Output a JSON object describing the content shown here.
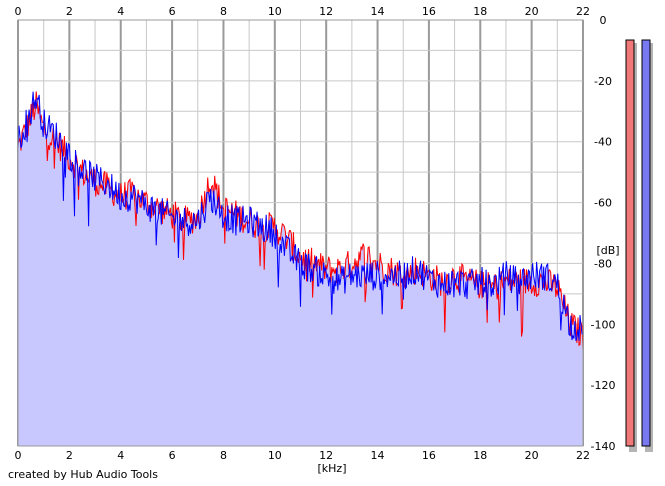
{
  "chart_data": {
    "type": "area",
    "xlabel": "[kHz]",
    "ylabel": "[dB]",
    "xlim": [
      0,
      22
    ],
    "ylim": [
      -140,
      0
    ],
    "x_ticks": [
      "0",
      "2",
      "4",
      "6",
      "8",
      "10",
      "12",
      "14",
      "16",
      "18",
      "20",
      "22"
    ],
    "y_ticks": [
      "0",
      "-20",
      "-40",
      "-60",
      "-80",
      "-100",
      "-120",
      "-140"
    ],
    "grid": true,
    "series": [
      {
        "color": "#ff0000",
        "x": [
          0,
          0.5,
          0.7,
          1,
          1.5,
          2,
          2.5,
          3,
          3.5,
          4,
          4.5,
          5,
          5.5,
          6,
          6.5,
          7,
          7.5,
          8,
          8.5,
          9,
          9.5,
          10,
          10.5,
          11,
          11.5,
          12,
          12.5,
          13,
          13.5,
          14,
          14.5,
          15,
          15.5,
          16,
          16.5,
          17,
          17.5,
          18,
          18.5,
          19,
          19.5,
          20,
          20.5,
          21,
          21.5,
          22
        ],
        "values": [
          -42,
          -32,
          -28,
          -36,
          -40,
          -45,
          -50,
          -53,
          -55,
          -58,
          -57,
          -60,
          -62,
          -64,
          -66,
          -65,
          -52,
          -62,
          -64,
          -66,
          -68,
          -68,
          -72,
          -78,
          -80,
          -82,
          -82,
          -80,
          -77,
          -80,
          -82,
          -84,
          -82,
          -84,
          -86,
          -84,
          -86,
          -87,
          -88,
          -86,
          -86,
          -86,
          -86,
          -88,
          -100,
          -104
        ]
      },
      {
        "color": "#0000ff",
        "x": [
          0,
          0.5,
          0.7,
          1,
          1.5,
          2,
          2.5,
          3,
          3.5,
          4,
          4.5,
          5,
          5.5,
          6,
          6.5,
          7,
          7.5,
          8,
          8.5,
          9,
          9.5,
          10,
          10.5,
          11,
          11.5,
          12,
          12.5,
          13,
          13.5,
          14,
          14.5,
          15,
          15.5,
          16,
          16.5,
          17,
          17.5,
          18,
          18.5,
          19,
          19.5,
          20,
          20.5,
          21,
          21.5,
          22
        ],
        "values": [
          -40,
          -30,
          -25,
          -34,
          -38,
          -44,
          -49,
          -52,
          -54,
          -58,
          -58,
          -61,
          -63,
          -65,
          -66,
          -66,
          -58,
          -64,
          -66,
          -66,
          -68,
          -70,
          -76,
          -80,
          -82,
          -84,
          -86,
          -84,
          -84,
          -84,
          -84,
          -84,
          -82,
          -85,
          -87,
          -86,
          -87,
          -86,
          -87,
          -84,
          -86,
          -84,
          -84,
          -87,
          -100,
          -102
        ]
      }
    ],
    "fill_color": "#c8c8ff",
    "meters": [
      {
        "color": "#f07878",
        "level": 1.0
      },
      {
        "color": "#7878f0",
        "level": 1.0
      }
    ]
  },
  "credit": "created by Hub Audio Tools"
}
